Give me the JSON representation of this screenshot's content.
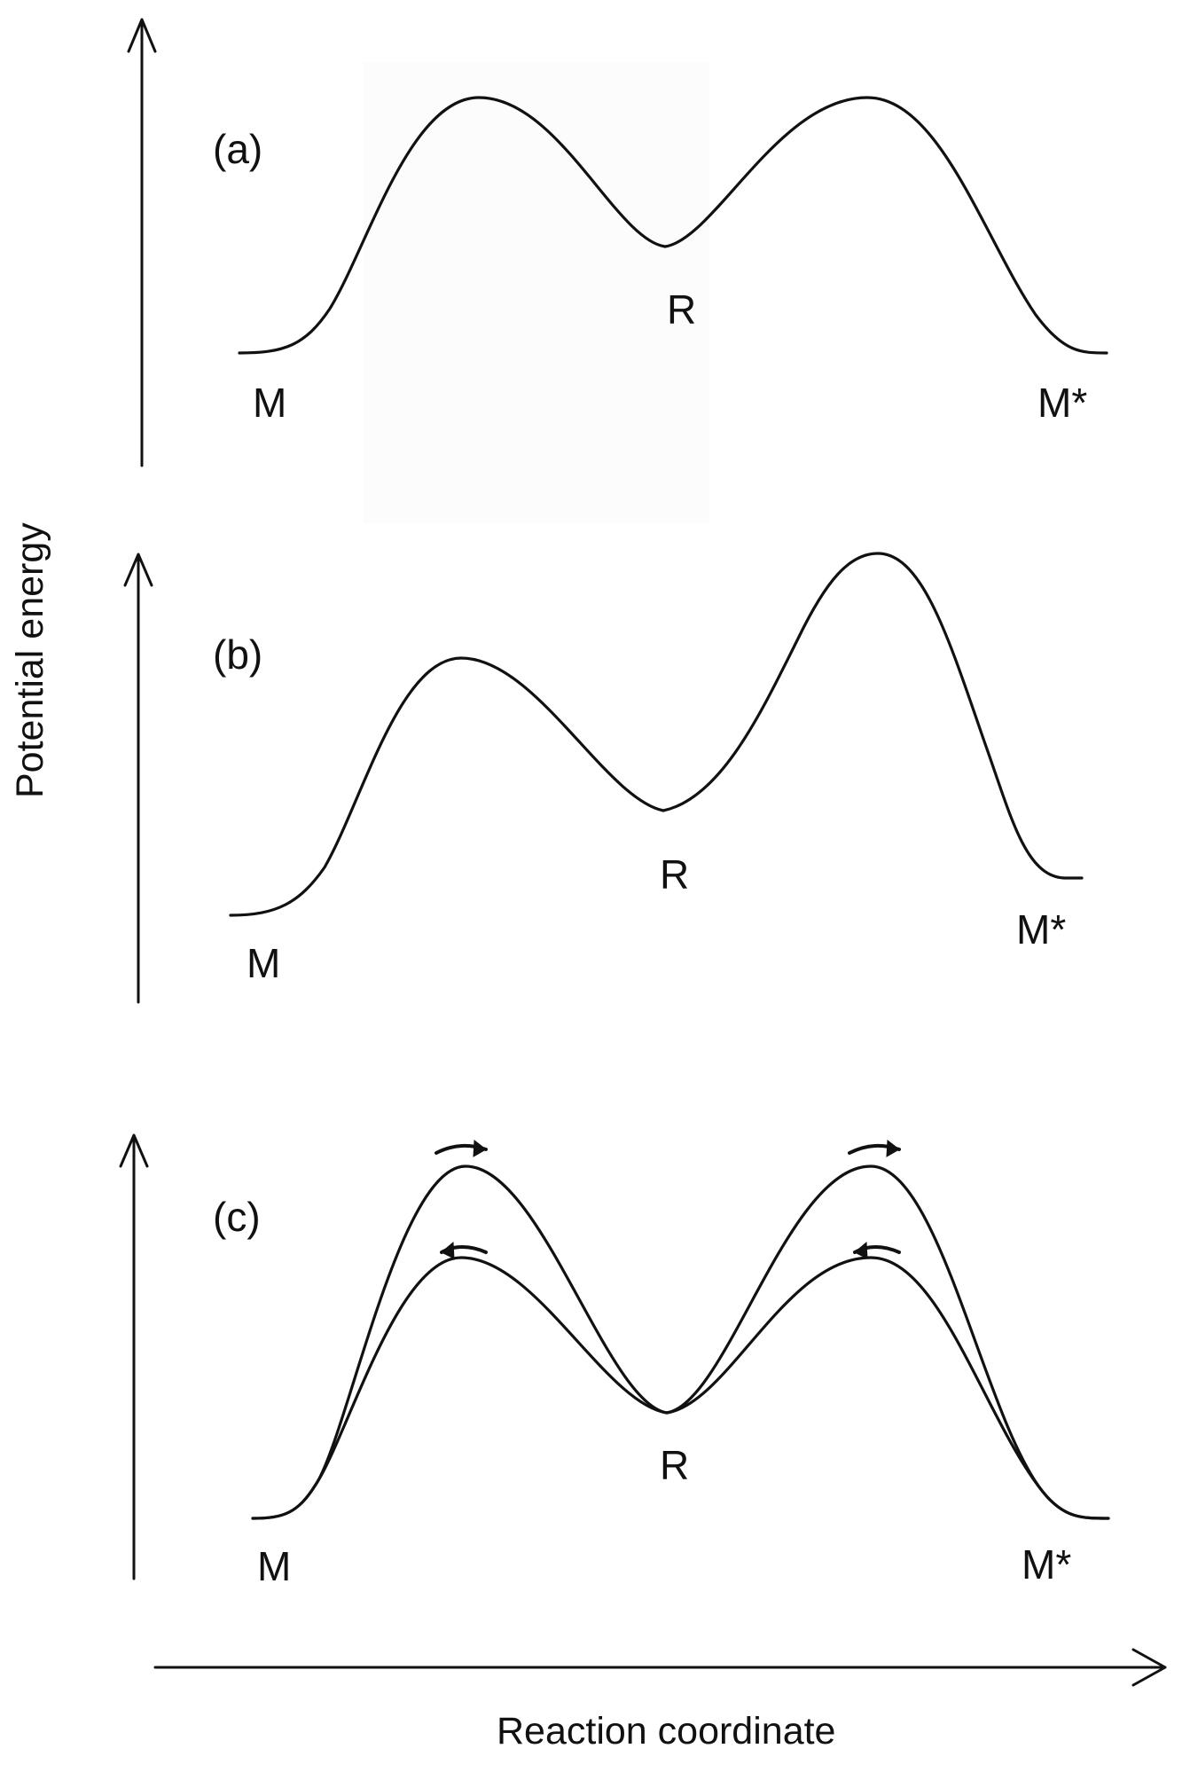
{
  "diagram": {
    "y_axis_label": "Potential energy",
    "x_axis_label": "Reaction coordinate",
    "panels": [
      {
        "id": "a",
        "label": "(a)",
        "left_state": "M",
        "middle_state": "R",
        "right_state": "M*"
      },
      {
        "id": "b",
        "label": "(b)",
        "left_state": "M",
        "middle_state": "R",
        "right_state": "M*"
      },
      {
        "id": "c",
        "label": "(c)",
        "left_state": "M",
        "middle_state": "R",
        "right_state": "M*"
      }
    ]
  }
}
